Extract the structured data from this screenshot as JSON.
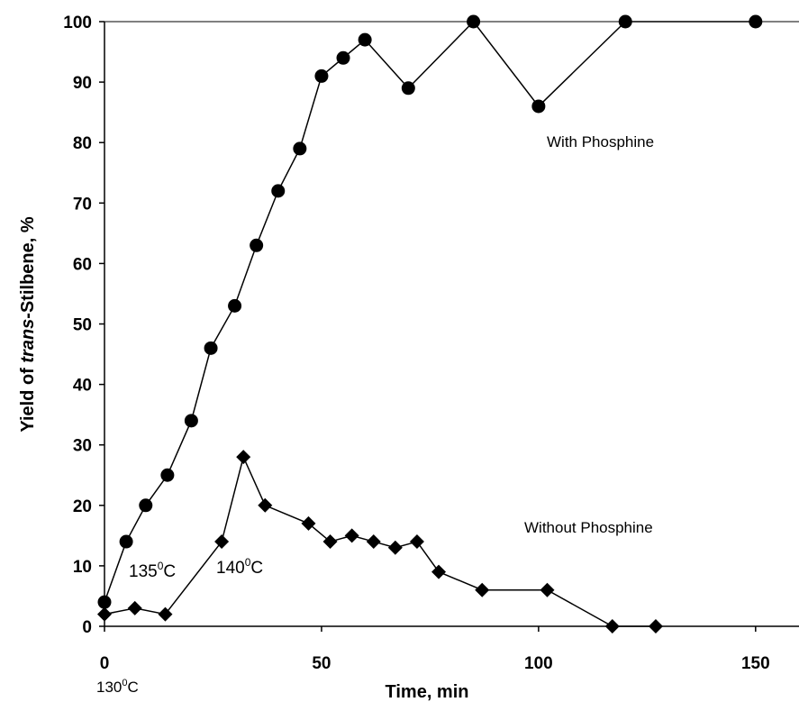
{
  "chart_data": {
    "type": "line",
    "xlabel": "Time, min",
    "ylabel_parts": [
      "Yield of ",
      "trans",
      "-Stilbene, %"
    ],
    "xlim": [
      0,
      160
    ],
    "ylim": [
      0,
      100
    ],
    "x_ticks": [
      0,
      50,
      100,
      150
    ],
    "y_ticks": [
      0,
      10,
      20,
      30,
      40,
      50,
      60,
      70,
      80,
      90,
      100
    ],
    "grid": false,
    "series": [
      {
        "name": "With Phosphine",
        "marker": "circle",
        "color": "#000000",
        "x": [
          0,
          5,
          9.5,
          14.5,
          20,
          24.5,
          30,
          35,
          40,
          45,
          50,
          55,
          60,
          70,
          85,
          100,
          120,
          150
        ],
        "y": [
          4,
          14,
          20,
          25,
          34,
          46,
          53,
          63,
          72,
          79,
          91,
          94,
          97,
          89,
          100,
          86,
          100,
          100
        ]
      },
      {
        "name": "Without Phosphine",
        "marker": "diamond",
        "color": "#000000",
        "x": [
          0,
          7,
          14,
          27,
          32,
          37,
          47,
          52,
          57,
          62,
          67,
          72,
          77,
          87,
          102,
          117,
          127
        ],
        "y": [
          2,
          3,
          2,
          14,
          28,
          20,
          17,
          14,
          15,
          14,
          13,
          14,
          9,
          6,
          6,
          0,
          0
        ]
      }
    ],
    "annotations": [
      {
        "id": "t130",
        "base": "130",
        "sup": "0",
        "unit": "C"
      },
      {
        "id": "t135",
        "base": "135",
        "sup": "0",
        "unit": "C"
      },
      {
        "id": "t140",
        "base": "140",
        "sup": "0",
        "unit": "C"
      }
    ]
  }
}
